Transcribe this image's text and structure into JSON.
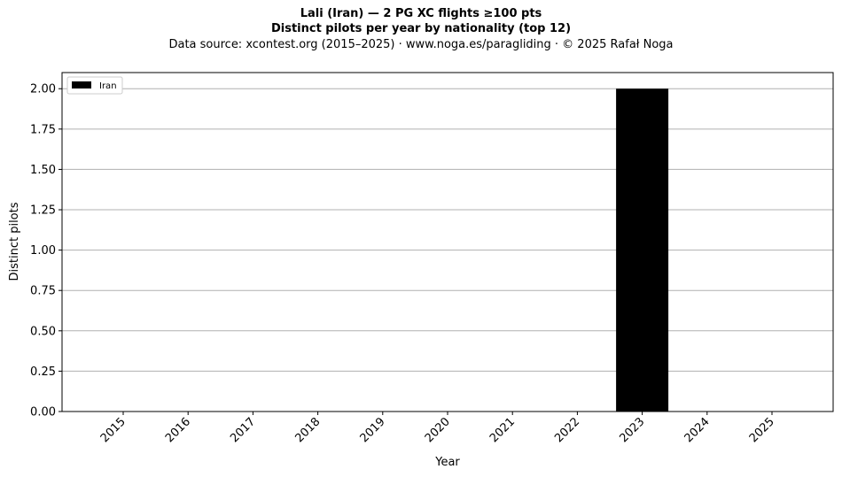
{
  "chart_data": {
    "type": "bar",
    "title": "Lali (Iran)  —  2 PG XC flights ≥100 pts",
    "subtitle": "Distinct pilots per year by nationality (top 12)",
    "source_line": "Data source: xcontest.org (2015–2025)  ·  www.noga.es/paragliding  ·  © 2025 Rafał Noga",
    "xlabel": "Year",
    "ylabel": "Distinct pilots",
    "categories": [
      "2015",
      "2016",
      "2017",
      "2018",
      "2019",
      "2020",
      "2021",
      "2022",
      "2023",
      "2024",
      "2025"
    ],
    "series": [
      {
        "name": "Iran",
        "color": "#000000",
        "values": [
          0,
          0,
          0,
          0,
          0,
          0,
          0,
          0,
          2,
          0,
          0
        ]
      }
    ],
    "ylim": [
      0,
      2.1
    ],
    "yticks": [
      "0.00",
      "0.25",
      "0.50",
      "0.75",
      "1.00",
      "1.25",
      "1.50",
      "1.75",
      "2.00"
    ],
    "grid": "horizontal",
    "legend_position": "top-left"
  }
}
